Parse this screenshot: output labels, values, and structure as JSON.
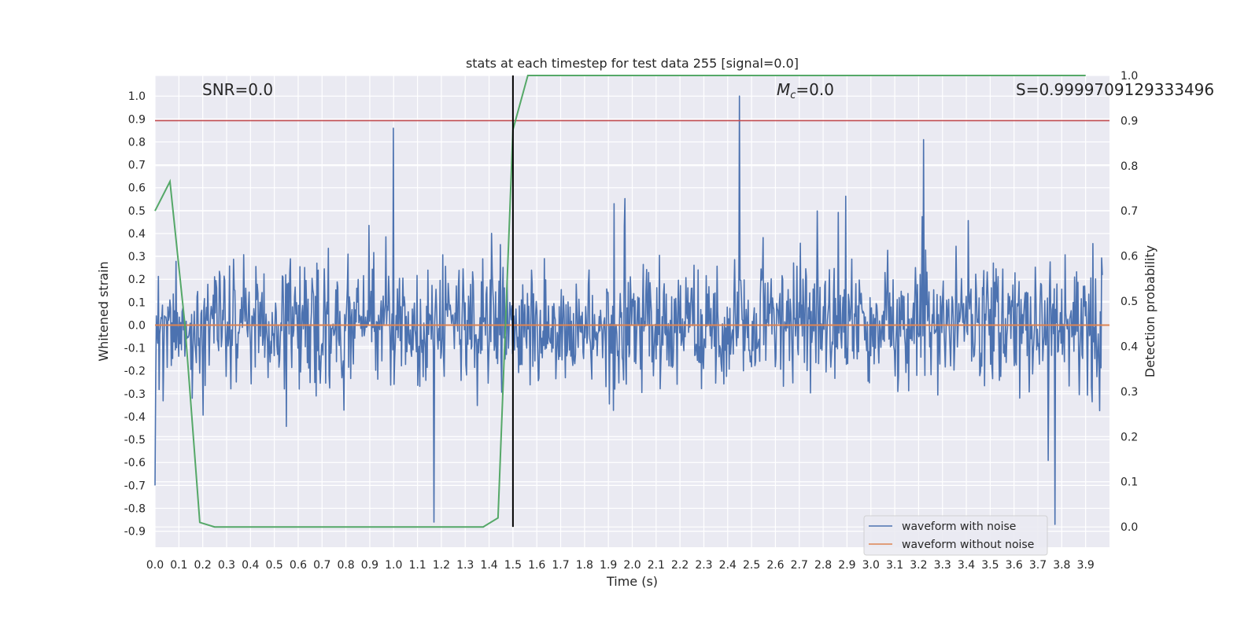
{
  "chart_data": {
    "type": "line",
    "title": "stats at each timestep for test data 255 [signal=0.0]",
    "xlabel": "Time (s)",
    "ylabel_left": "Whitened strain",
    "ylabel_right": "Detection probability",
    "xlim": [
      0.0,
      4.0
    ],
    "ylim_left": [
      -0.97,
      1.09
    ],
    "ylim_right": [
      -0.045,
      1.0
    ],
    "x_ticks": [
      "0.0",
      "0.1",
      "0.2",
      "0.3",
      "0.4",
      "0.5",
      "0.6",
      "0.7",
      "0.8",
      "0.9",
      "1.0",
      "1.1",
      "1.2",
      "1.3",
      "1.4",
      "1.5",
      "1.6",
      "1.7",
      "1.8",
      "1.9",
      "2.0",
      "2.1",
      "2.2",
      "2.3",
      "2.4",
      "2.5",
      "2.6",
      "2.7",
      "2.8",
      "2.9",
      "3.0",
      "3.1",
      "3.2",
      "3.3",
      "3.4",
      "3.5",
      "3.6",
      "3.7",
      "3.8",
      "3.9"
    ],
    "y_ticks_left": [
      "1.0",
      "0.9",
      "0.8",
      "0.7",
      "0.6",
      "0.5",
      "0.4",
      "0.3",
      "0.2",
      "0.1",
      "0.0",
      "-0.1",
      "-0.2",
      "-0.3",
      "-0.4",
      "-0.5",
      "-0.6",
      "-0.7",
      "-0.8",
      "-0.9"
    ],
    "y_ticks_right": [
      "1.0",
      "0.9",
      "0.8",
      "0.7",
      "0.6",
      "0.5",
      "0.4",
      "0.3",
      "0.2",
      "0.1",
      "0.0"
    ],
    "annotations": {
      "snr": "SNR=0.0",
      "mc_symbol": "M",
      "mc_sub": "c",
      "mc_value": "=0.0",
      "s": "S=0.9999709129333496"
    },
    "series": [
      {
        "name": "waveform with noise",
        "color": "#4c72b0",
        "axis": "left",
        "note_visual": "dense noise, mostly within +/-0.5, peaks up to 1.0 near t=2.45, -0.86 near t=1.17 and t=3.77",
        "extremes": [
          [
            1.0,
            0.86
          ],
          [
            1.17,
            -0.86
          ],
          [
            2.45,
            1.0
          ],
          [
            3.22,
            0.81
          ],
          [
            3.77,
            -0.87
          ],
          [
            0.0,
            -0.7
          ]
        ]
      },
      {
        "name": "waveform without noise",
        "color": "#dd8452",
        "axis": "left",
        "x": [
          0.0,
          4.0
        ],
        "values": [
          0.0,
          0.0
        ]
      }
    ],
    "probability": {
      "color": "#55a868",
      "axis": "right",
      "x": [
        0.0,
        0.0625,
        0.125,
        0.1875,
        0.25,
        0.3125,
        0.5,
        0.75,
        1.0,
        1.25,
        1.3125,
        1.375,
        1.4375,
        1.5,
        1.5625,
        2.0,
        3.0,
        3.9
      ],
      "values": [
        0.7,
        0.765,
        0.45,
        0.01,
        0.0,
        0.0,
        0.0,
        0.0,
        0.0,
        0.0,
        0.0,
        0.0,
        0.02,
        0.88,
        1.0,
        1.0,
        1.0,
        1.0
      ]
    },
    "threshold": {
      "color": "#c44e52",
      "axis": "right",
      "value": 0.9
    },
    "vline": {
      "color": "#000000",
      "x": 1.5,
      "y_range_right": [
        0.0,
        1.0
      ]
    },
    "grid": true,
    "legend": {
      "placement": "lower-right",
      "entries": [
        "waveform with noise",
        "waveform without noise"
      ]
    }
  }
}
